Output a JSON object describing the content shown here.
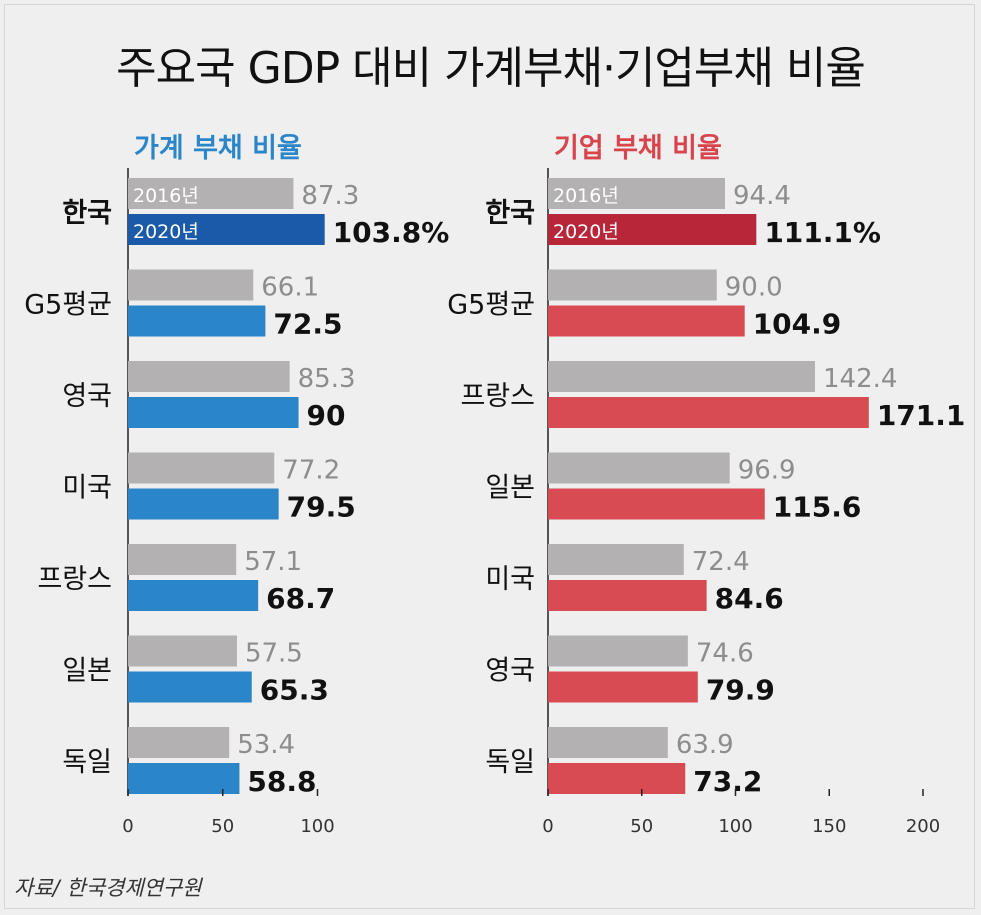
{
  "title": "주요국 GDP 대비 가계부채·기업부채 비율",
  "source": "자료/ 한국경제연구원",
  "colors": {
    "gray": "#b3b1b2",
    "household_light": "#2a86c8",
    "household_dark": "#1a5aa8",
    "corporate_light": "#d84b52",
    "corporate_dark": "#b8263a",
    "household_title": "#2a86c8",
    "corporate_title": "#d8434c"
  },
  "chart_data": [
    {
      "type": "bar",
      "title": "가계 부채 비율",
      "categories": [
        "한국",
        "G5평균",
        "영국",
        "미국",
        "프랑스",
        "일본",
        "독일"
      ],
      "series": [
        {
          "name": "2016년",
          "values": [
            87.3,
            66.1,
            85.3,
            77.2,
            57.1,
            57.5,
            53.4
          ]
        },
        {
          "name": "2020년",
          "values": [
            103.8,
            72.5,
            90,
            79.5,
            68.7,
            65.3,
            58.8
          ]
        }
      ],
      "value_labels_old": [
        "87.3",
        "66.1",
        "85.3",
        "77.2",
        "57.1",
        "57.5",
        "53.4"
      ],
      "value_labels_new": [
        "103.8%",
        "72.5",
        "90",
        "79.5",
        "68.7",
        "65.3",
        "58.8"
      ],
      "xlim": [
        0,
        100
      ],
      "ticks": [
        "0",
        "50",
        "100"
      ]
    },
    {
      "type": "bar",
      "title": "기업 부채 비율",
      "categories": [
        "한국",
        "G5평균",
        "프랑스",
        "일본",
        "미국",
        "영국",
        "독일"
      ],
      "series": [
        {
          "name": "2016년",
          "values": [
            94.4,
            90.0,
            142.4,
            96.9,
            72.4,
            74.6,
            63.9
          ]
        },
        {
          "name": "2020년",
          "values": [
            111.1,
            104.9,
            171.1,
            115.6,
            84.6,
            79.9,
            73.2
          ]
        }
      ],
      "value_labels_old": [
        "94.4",
        "90.0",
        "142.4",
        "96.9",
        "72.4",
        "74.6",
        "63.9"
      ],
      "value_labels_new": [
        "111.1%",
        "104.9",
        "171.1",
        "115.6",
        "84.6",
        "79.9",
        "73.2"
      ],
      "xlim": [
        0,
        200
      ],
      "ticks": [
        "0",
        "50",
        "100",
        "150",
        "200"
      ]
    }
  ]
}
